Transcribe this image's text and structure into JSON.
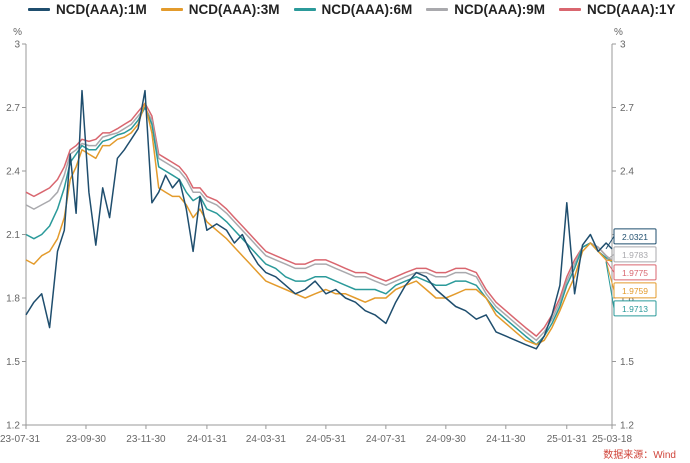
{
  "source_note": "数据来源：Wind",
  "chart_data": {
    "type": "line",
    "title": "",
    "xlabel": "",
    "ylabel": "%",
    "ylabel_right": "%",
    "ylim": [
      1.2,
      3.0
    ],
    "yticks": [
      1.2,
      1.5,
      1.8,
      2.1,
      2.4,
      2.7,
      3.0
    ],
    "ytick_labels": [
      "1.2",
      "1.5",
      "1.8",
      "2.1",
      "2.4",
      "2.7",
      "3"
    ],
    "xlim": [
      "2023-07-31",
      "2025-03-18"
    ],
    "xticks": [
      "2023-07-31",
      "2023-09-30",
      "2023-11-30",
      "2024-01-31",
      "2024-03-31",
      "2024-05-31",
      "2024-07-31",
      "2024-09-30",
      "2024-11-30",
      "2025-01-31",
      "2025-03-18"
    ],
    "xtick_labels": [
      "23-07-31",
      "23-09-30",
      "23-11-30",
      "24-01-31",
      "24-03-31",
      "24-05-31",
      "24-07-31",
      "24-09-30",
      "24-11-30",
      "25-01-31",
      "25-03-18"
    ],
    "grid": false,
    "legend_position": "top",
    "series": [
      {
        "name": "NCD(AAA):1M",
        "color": "#1f4e6e",
        "last_label": "2.0321",
        "x": [
          "2023-07-31",
          "2023-08-08",
          "2023-08-16",
          "2023-08-24",
          "2023-09-01",
          "2023-09-08",
          "2023-09-14",
          "2023-09-20",
          "2023-09-26",
          "2023-10-03",
          "2023-10-10",
          "2023-10-17",
          "2023-10-24",
          "2023-11-01",
          "2023-11-08",
          "2023-11-15",
          "2023-11-22",
          "2023-11-29",
          "2023-12-06",
          "2023-12-13",
          "2023-12-20",
          "2023-12-27",
          "2024-01-03",
          "2024-01-10",
          "2024-01-17",
          "2024-01-24",
          "2024-01-31",
          "2024-02-10",
          "2024-02-20",
          "2024-02-28",
          "2024-03-07",
          "2024-03-15",
          "2024-03-23",
          "2024-03-31",
          "2024-04-10",
          "2024-04-20",
          "2024-04-30",
          "2024-05-10",
          "2024-05-20",
          "2024-05-31",
          "2024-06-10",
          "2024-06-20",
          "2024-06-30",
          "2024-07-10",
          "2024-07-20",
          "2024-07-31",
          "2024-08-10",
          "2024-08-20",
          "2024-08-31",
          "2024-09-10",
          "2024-09-20",
          "2024-09-30",
          "2024-10-10",
          "2024-10-20",
          "2024-10-31",
          "2024-11-10",
          "2024-11-20",
          "2024-11-30",
          "2024-12-10",
          "2024-12-20",
          "2024-12-31",
          "2025-01-08",
          "2025-01-16",
          "2025-01-24",
          "2025-01-31",
          "2025-02-08",
          "2025-02-16",
          "2025-02-24",
          "2025-03-04",
          "2025-03-12",
          "2025-03-18"
        ],
        "y": [
          1.72,
          1.78,
          1.82,
          1.66,
          2.02,
          2.12,
          2.48,
          2.2,
          2.78,
          2.3,
          2.05,
          2.32,
          2.18,
          2.46,
          2.5,
          2.55,
          2.6,
          2.78,
          2.25,
          2.3,
          2.38,
          2.32,
          2.36,
          2.22,
          2.02,
          2.28,
          2.12,
          2.15,
          2.12,
          2.06,
          2.1,
          2.02,
          1.96,
          1.92,
          1.9,
          1.86,
          1.82,
          1.84,
          1.88,
          1.82,
          1.84,
          1.8,
          1.78,
          1.74,
          1.72,
          1.68,
          1.78,
          1.86,
          1.92,
          1.9,
          1.84,
          1.8,
          1.76,
          1.74,
          1.7,
          1.72,
          1.64,
          1.62,
          1.6,
          1.58,
          1.56,
          1.62,
          1.72,
          1.86,
          2.25,
          1.82,
          2.05,
          2.1,
          2.02,
          2.06,
          2.0321
        ]
      },
      {
        "name": "NCD(AAA):3M",
        "color": "#e39b2c",
        "last_label": "1.9759",
        "x": [
          "2023-07-31",
          "2023-08-08",
          "2023-08-16",
          "2023-08-24",
          "2023-09-01",
          "2023-09-08",
          "2023-09-14",
          "2023-09-20",
          "2023-09-26",
          "2023-10-03",
          "2023-10-10",
          "2023-10-17",
          "2023-10-24",
          "2023-11-01",
          "2023-11-08",
          "2023-11-15",
          "2023-11-22",
          "2023-11-29",
          "2023-12-06",
          "2023-12-13",
          "2023-12-20",
          "2023-12-27",
          "2024-01-03",
          "2024-01-10",
          "2024-01-17",
          "2024-01-24",
          "2024-01-31",
          "2024-02-10",
          "2024-02-20",
          "2024-02-28",
          "2024-03-07",
          "2024-03-15",
          "2024-03-23",
          "2024-03-31",
          "2024-04-10",
          "2024-04-20",
          "2024-04-30",
          "2024-05-10",
          "2024-05-20",
          "2024-05-31",
          "2024-06-10",
          "2024-06-20",
          "2024-06-30",
          "2024-07-10",
          "2024-07-20",
          "2024-07-31",
          "2024-08-10",
          "2024-08-20",
          "2024-08-31",
          "2024-09-10",
          "2024-09-20",
          "2024-09-30",
          "2024-10-10",
          "2024-10-20",
          "2024-10-31",
          "2024-11-10",
          "2024-11-20",
          "2024-11-30",
          "2024-12-10",
          "2024-12-20",
          "2024-12-31",
          "2025-01-08",
          "2025-01-16",
          "2025-01-24",
          "2025-01-31",
          "2025-02-08",
          "2025-02-16",
          "2025-02-24",
          "2025-03-04",
          "2025-03-12",
          "2025-03-18"
        ],
        "y": [
          1.98,
          1.96,
          2.0,
          2.02,
          2.08,
          2.18,
          2.36,
          2.42,
          2.5,
          2.48,
          2.46,
          2.52,
          2.52,
          2.55,
          2.56,
          2.58,
          2.62,
          2.72,
          2.58,
          2.32,
          2.3,
          2.28,
          2.28,
          2.24,
          2.18,
          2.22,
          2.16,
          2.12,
          2.08,
          2.04,
          2.0,
          1.96,
          1.92,
          1.88,
          1.86,
          1.84,
          1.82,
          1.8,
          1.82,
          1.84,
          1.82,
          1.82,
          1.8,
          1.78,
          1.8,
          1.8,
          1.84,
          1.86,
          1.88,
          1.84,
          1.8,
          1.8,
          1.82,
          1.84,
          1.84,
          1.8,
          1.72,
          1.68,
          1.64,
          1.6,
          1.58,
          1.6,
          1.66,
          1.74,
          1.82,
          1.9,
          2.02,
          2.06,
          2.02,
          1.98,
          1.9759
        ]
      },
      {
        "name": "NCD(AAA):6M",
        "color": "#2b9a9a",
        "last_label": "1.9713",
        "x": [
          "2023-07-31",
          "2023-08-08",
          "2023-08-16",
          "2023-08-24",
          "2023-09-01",
          "2023-09-08",
          "2023-09-14",
          "2023-09-20",
          "2023-09-26",
          "2023-10-03",
          "2023-10-10",
          "2023-10-17",
          "2023-10-24",
          "2023-11-01",
          "2023-11-08",
          "2023-11-15",
          "2023-11-22",
          "2023-11-29",
          "2023-12-06",
          "2023-12-13",
          "2023-12-20",
          "2023-12-27",
          "2024-01-03",
          "2024-01-10",
          "2024-01-17",
          "2024-01-24",
          "2024-01-31",
          "2024-02-10",
          "2024-02-20",
          "2024-02-28",
          "2024-03-07",
          "2024-03-15",
          "2024-03-23",
          "2024-03-31",
          "2024-04-10",
          "2024-04-20",
          "2024-04-30",
          "2024-05-10",
          "2024-05-20",
          "2024-05-31",
          "2024-06-10",
          "2024-06-20",
          "2024-06-30",
          "2024-07-10",
          "2024-07-20",
          "2024-07-31",
          "2024-08-10",
          "2024-08-20",
          "2024-08-31",
          "2024-09-10",
          "2024-09-20",
          "2024-09-30",
          "2024-10-10",
          "2024-10-20",
          "2024-10-31",
          "2024-11-10",
          "2024-11-20",
          "2024-11-30",
          "2024-12-10",
          "2024-12-20",
          "2024-12-31",
          "2025-01-08",
          "2025-01-16",
          "2025-01-24",
          "2025-01-31",
          "2025-02-08",
          "2025-02-16",
          "2025-02-24",
          "2025-03-04",
          "2025-03-12",
          "2025-03-18"
        ],
        "y": [
          2.1,
          2.08,
          2.1,
          2.14,
          2.22,
          2.32,
          2.44,
          2.48,
          2.52,
          2.5,
          2.5,
          2.54,
          2.55,
          2.57,
          2.58,
          2.6,
          2.64,
          2.7,
          2.62,
          2.42,
          2.4,
          2.38,
          2.36,
          2.3,
          2.26,
          2.28,
          2.22,
          2.2,
          2.16,
          2.12,
          2.08,
          2.04,
          2.0,
          1.96,
          1.94,
          1.9,
          1.88,
          1.88,
          1.9,
          1.9,
          1.88,
          1.86,
          1.84,
          1.84,
          1.84,
          1.82,
          1.86,
          1.88,
          1.9,
          1.88,
          1.86,
          1.86,
          1.88,
          1.88,
          1.86,
          1.8,
          1.74,
          1.7,
          1.66,
          1.62,
          1.58,
          1.62,
          1.68,
          1.76,
          1.86,
          1.94,
          2.04,
          2.06,
          2.02,
          1.99,
          1.9713
        ]
      },
      {
        "name": "NCD(AAA):9M",
        "color": "#a9a9ad",
        "last_label": "1.9783",
        "x": [
          "2023-07-31",
          "2023-08-08",
          "2023-08-16",
          "2023-08-24",
          "2023-09-01",
          "2023-09-08",
          "2023-09-14",
          "2023-09-20",
          "2023-09-26",
          "2023-10-03",
          "2023-10-10",
          "2023-10-17",
          "2023-10-24",
          "2023-11-01",
          "2023-11-08",
          "2023-11-15",
          "2023-11-22",
          "2023-11-29",
          "2023-12-06",
          "2023-12-13",
          "2023-12-20",
          "2023-12-27",
          "2024-01-03",
          "2024-01-10",
          "2024-01-17",
          "2024-01-24",
          "2024-01-31",
          "2024-02-10",
          "2024-02-20",
          "2024-02-28",
          "2024-03-07",
          "2024-03-15",
          "2024-03-23",
          "2024-03-31",
          "2024-04-10",
          "2024-04-20",
          "2024-04-30",
          "2024-05-10",
          "2024-05-20",
          "2024-05-31",
          "2024-06-10",
          "2024-06-20",
          "2024-06-30",
          "2024-07-10",
          "2024-07-20",
          "2024-07-31",
          "2024-08-10",
          "2024-08-20",
          "2024-08-31",
          "2024-09-10",
          "2024-09-20",
          "2024-09-30",
          "2024-10-10",
          "2024-10-20",
          "2024-10-31",
          "2024-11-10",
          "2024-11-20",
          "2024-11-30",
          "2024-12-10",
          "2024-12-20",
          "2024-12-31",
          "2025-01-08",
          "2025-01-16",
          "2025-01-24",
          "2025-01-31",
          "2025-02-08",
          "2025-02-16",
          "2025-02-24",
          "2025-03-04",
          "2025-03-12",
          "2025-03-18"
        ],
        "y": [
          2.24,
          2.22,
          2.24,
          2.26,
          2.3,
          2.38,
          2.48,
          2.5,
          2.53,
          2.52,
          2.52,
          2.56,
          2.57,
          2.58,
          2.6,
          2.62,
          2.66,
          2.7,
          2.64,
          2.46,
          2.44,
          2.42,
          2.4,
          2.36,
          2.3,
          2.3,
          2.26,
          2.24,
          2.2,
          2.16,
          2.12,
          2.08,
          2.04,
          2.0,
          1.98,
          1.96,
          1.94,
          1.94,
          1.96,
          1.96,
          1.94,
          1.92,
          1.9,
          1.9,
          1.88,
          1.86,
          1.88,
          1.9,
          1.92,
          1.92,
          1.9,
          1.9,
          1.92,
          1.92,
          1.9,
          1.82,
          1.76,
          1.72,
          1.68,
          1.64,
          1.6,
          1.64,
          1.7,
          1.78,
          1.88,
          1.96,
          2.04,
          2.06,
          2.04,
          2.0,
          1.9783
        ]
      },
      {
        "name": "NCD(AAA):1Y",
        "color": "#d9666f",
        "last_label": "1.9775",
        "x": [
          "2023-07-31",
          "2023-08-08",
          "2023-08-16",
          "2023-08-24",
          "2023-09-01",
          "2023-09-08",
          "2023-09-14",
          "2023-09-20",
          "2023-09-26",
          "2023-10-03",
          "2023-10-10",
          "2023-10-17",
          "2023-10-24",
          "2023-11-01",
          "2023-11-08",
          "2023-11-15",
          "2023-11-22",
          "2023-11-29",
          "2023-12-06",
          "2023-12-13",
          "2023-12-20",
          "2023-12-27",
          "2024-01-03",
          "2024-01-10",
          "2024-01-17",
          "2024-01-24",
          "2024-01-31",
          "2024-02-10",
          "2024-02-20",
          "2024-02-28",
          "2024-03-07",
          "2024-03-15",
          "2024-03-23",
          "2024-03-31",
          "2024-04-10",
          "2024-04-20",
          "2024-04-30",
          "2024-05-10",
          "2024-05-20",
          "2024-05-31",
          "2024-06-10",
          "2024-06-20",
          "2024-06-30",
          "2024-07-10",
          "2024-07-20",
          "2024-07-31",
          "2024-08-10",
          "2024-08-20",
          "2024-08-31",
          "2024-09-10",
          "2024-09-20",
          "2024-09-30",
          "2024-10-10",
          "2024-10-20",
          "2024-10-31",
          "2024-11-10",
          "2024-11-20",
          "2024-11-30",
          "2024-12-10",
          "2024-12-20",
          "2024-12-31",
          "2025-01-08",
          "2025-01-16",
          "2025-01-24",
          "2025-01-31",
          "2025-02-08",
          "2025-02-16",
          "2025-02-24",
          "2025-03-04",
          "2025-03-12",
          "2025-03-18"
        ],
        "y": [
          2.3,
          2.28,
          2.3,
          2.32,
          2.36,
          2.42,
          2.5,
          2.52,
          2.55,
          2.54,
          2.55,
          2.58,
          2.58,
          2.6,
          2.62,
          2.64,
          2.68,
          2.72,
          2.66,
          2.48,
          2.46,
          2.44,
          2.42,
          2.38,
          2.32,
          2.32,
          2.28,
          2.26,
          2.22,
          2.18,
          2.14,
          2.1,
          2.06,
          2.02,
          2.0,
          1.98,
          1.96,
          1.96,
          1.98,
          1.98,
          1.96,
          1.94,
          1.92,
          1.92,
          1.9,
          1.88,
          1.9,
          1.92,
          1.94,
          1.94,
          1.92,
          1.92,
          1.94,
          1.94,
          1.92,
          1.84,
          1.78,
          1.74,
          1.7,
          1.66,
          1.62,
          1.66,
          1.72,
          1.8,
          1.9,
          1.98,
          2.04,
          2.06,
          2.04,
          2.0,
          1.9775
        ]
      }
    ]
  }
}
